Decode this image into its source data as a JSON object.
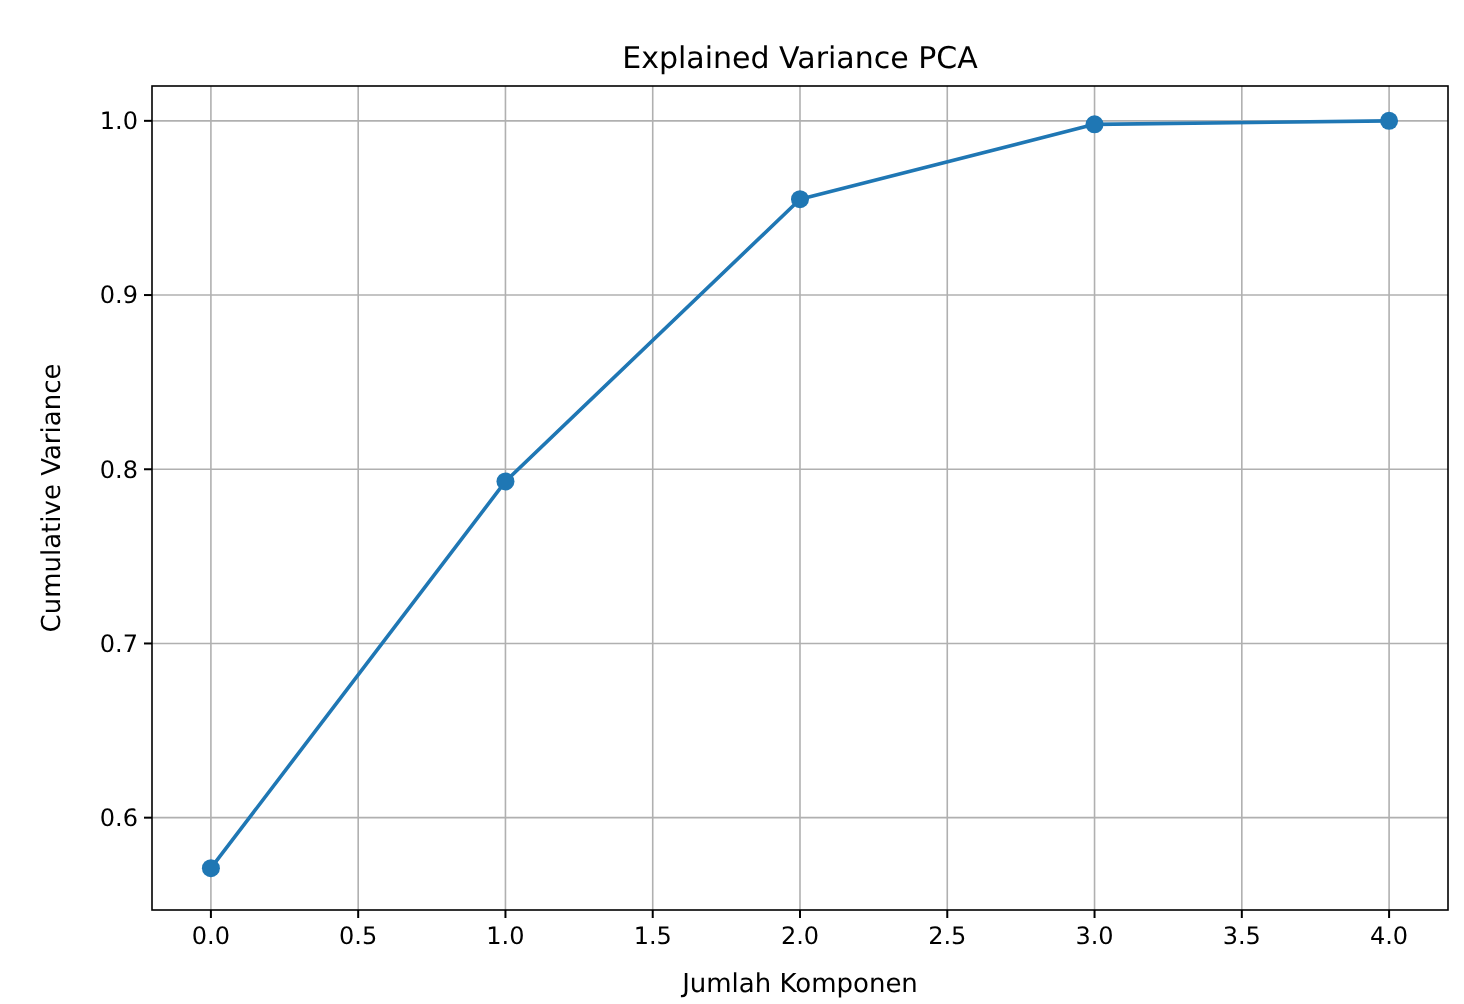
{
  "chart_data": {
    "type": "line",
    "title": "Explained Variance PCA",
    "xlabel": "Jumlah Komponen",
    "ylabel": "Cumulative Variance",
    "x": [
      0,
      1,
      2,
      3,
      4
    ],
    "series": [
      {
        "color": "#1f77b4",
        "values": [
          0.571,
          0.793,
          0.955,
          0.998,
          1.0
        ]
      }
    ],
    "xlim": [
      -0.2,
      4.2
    ],
    "xticks": [
      {
        "value": 0,
        "label": "0.0"
      },
      0.5,
      {
        "value": 1,
        "label": "1.0"
      },
      1.5,
      {
        "value": 2,
        "label": "2.0"
      },
      2.5,
      {
        "value": 3,
        "label": "3.0"
      },
      3.5,
      {
        "value": 4,
        "label": "4.0"
      }
    ],
    "ylim": [
      0.547,
      1.02
    ],
    "yticks": [
      0.6,
      0.7,
      0.8,
      0.9,
      {
        "value": 1,
        "label": "1.0"
      }
    ],
    "grid": true,
    "marker": "circle",
    "line_style": "solid"
  }
}
